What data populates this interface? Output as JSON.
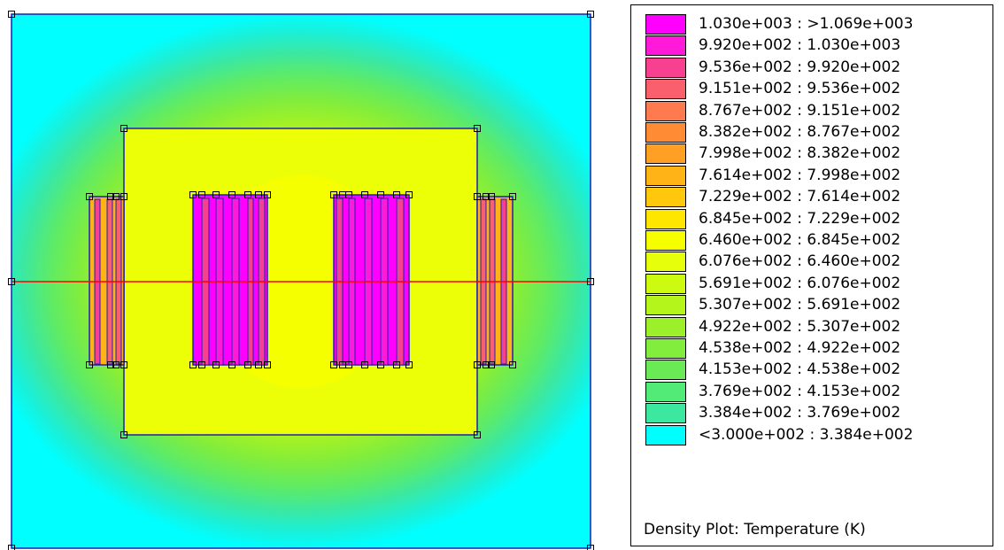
{
  "legend": {
    "title": "Density Plot: Temperature (K)",
    "entries": [
      {
        "label": "1.030e+003 : >1.069e+003",
        "color": "#ff00ff"
      },
      {
        "label": "9.920e+002 : 1.030e+003",
        "color": "#ff1ad9"
      },
      {
        "label": "9.536e+002 : 9.920e+002",
        "color": "#f7408f"
      },
      {
        "label": "9.151e+002 : 9.536e+002",
        "color": "#fa5f6d"
      },
      {
        "label": "8.767e+002 : 9.151e+002",
        "color": "#ff7a4e"
      },
      {
        "label": "8.382e+002 : 8.767e+002",
        "color": "#ff8c35"
      },
      {
        "label": "7.998e+002 : 8.382e+002",
        "color": "#ffa024"
      },
      {
        "label": "7.614e+002 : 7.998e+002",
        "color": "#ffb317"
      },
      {
        "label": "7.229e+002 : 7.614e+002",
        "color": "#ffc80c"
      },
      {
        "label": "6.845e+002 : 7.229e+002",
        "color": "#ffe600"
      },
      {
        "label": "6.460e+002 : 6.845e+002",
        "color": "#f5ff00"
      },
      {
        "label": "6.076e+002 : 6.460e+002",
        "color": "#e6ff0a"
      },
      {
        "label": "5.691e+002 : 6.076e+002",
        "color": "#ccfa10"
      },
      {
        "label": "5.307e+002 : 5.691e+002",
        "color": "#b4f51b"
      },
      {
        "label": "4.922e+002 : 5.307e+002",
        "color": "#9cf02a"
      },
      {
        "label": "4.538e+002 : 4.922e+002",
        "color": "#82ed3c"
      },
      {
        "label": "4.153e+002 : 4.538e+002",
        "color": "#6aeb55"
      },
      {
        "label": "3.769e+002 : 4.153e+002",
        "color": "#52eb78"
      },
      {
        "label": "3.384e+002 : 3.769e+002",
        "color": "#3ce8a0"
      },
      {
        "label": "<3.000e+002 : 3.384e+002",
        "color": "#00ffff"
      }
    ]
  },
  "colors": {
    "outline": "#1f1fb4",
    "cut_line": "#ff0000",
    "hot_coil": "#ff00ff",
    "outer_coil": "#f7408f",
    "background_field": "#00ffff",
    "core_field": "#f5ff00"
  }
}
